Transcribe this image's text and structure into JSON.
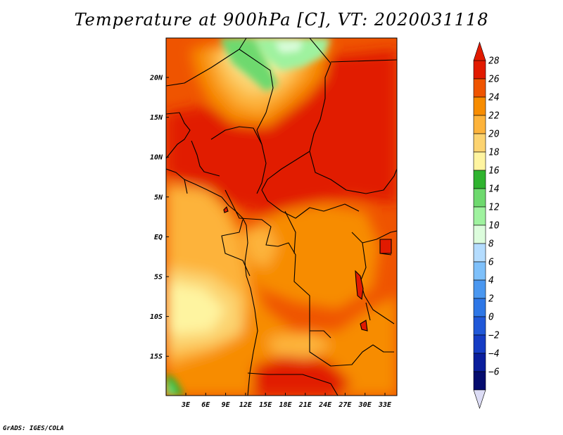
{
  "title": "Temperature at 900hPa [C], VT: 2020031118",
  "credit": "GrADS: IGES/COLA",
  "map": {
    "lat_labels": [
      "20N",
      "15N",
      "10N",
      "5N",
      "EQ",
      "5S",
      "10S",
      "15S"
    ],
    "lon_labels": [
      "3E",
      "6E",
      "9E",
      "12E",
      "15E",
      "18E",
      "21E",
      "24E",
      "27E",
      "30E",
      "33E"
    ]
  },
  "colorbar": {
    "labels": [
      "28",
      "26",
      "24",
      "22",
      "20",
      "18",
      "16",
      "14",
      "12",
      "10",
      "8",
      "6",
      "4",
      "2",
      "0",
      "−2",
      "−4",
      "−6"
    ],
    "colors": [
      "#e11a00",
      "#ef5400",
      "#f78c00",
      "#fdb33b",
      "#fcd370",
      "#fef4a0",
      "#2fb32f",
      "#6ed96e",
      "#9ff29f",
      "#dcfcdc",
      "#b4dcfe",
      "#7ec0fa",
      "#4a97f0",
      "#2e77e6",
      "#2058d8",
      "#153cc4",
      "#0a1e9c",
      "#050c6e"
    ],
    "over_color": "#e11a00",
    "under_color": "#dcdcf5"
  }
}
